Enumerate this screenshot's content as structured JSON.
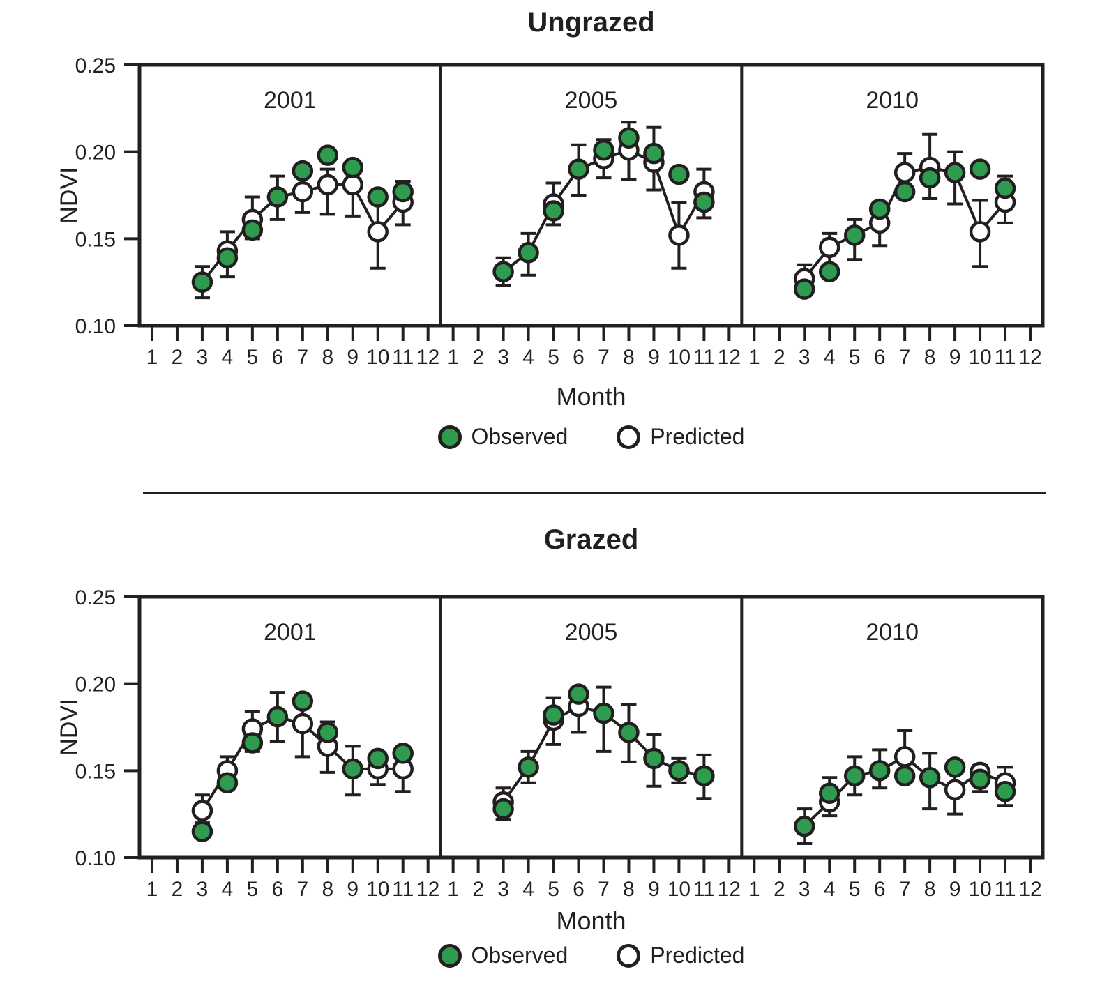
{
  "colors": {
    "observed": "#2e9b4f",
    "predicted": "#ffffff",
    "stroke": "#231f20"
  },
  "chart_data": [
    {
      "type": "line",
      "title": "Ungrazed",
      "xlabel": "Month",
      "ylabel": "NDVI",
      "ylim": [
        0.1,
        0.25
      ],
      "yticks": [
        0.1,
        0.15,
        0.2,
        0.25
      ],
      "months": [
        1,
        2,
        3,
        4,
        5,
        6,
        7,
        8,
        9,
        10,
        11,
        12
      ],
      "grid": false,
      "legend": [
        {
          "name": "Observed",
          "fill": "#2e9b4f"
        },
        {
          "name": "Predicted",
          "fill": "#ffffff"
        }
      ],
      "panels": [
        {
          "year": "2001",
          "points": [
            {
              "m": 3,
              "obs": 0.125,
              "pred": null,
              "line": 0.125,
              "err": [
                0.116,
                0.134
              ]
            },
            {
              "m": 4,
              "obs": 0.139,
              "pred": 0.143,
              "line": 0.143,
              "err": [
                0.128,
                0.154
              ]
            },
            {
              "m": 5,
              "obs": 0.155,
              "pred": 0.161,
              "line": 0.161,
              "err": [
                0.15,
                0.174
              ]
            },
            {
              "m": 6,
              "obs": 0.174,
              "pred": null,
              "line": 0.174,
              "err": [
                0.161,
                0.186
              ]
            },
            {
              "m": 7,
              "obs": 0.189,
              "pred": 0.177,
              "line": 0.177,
              "err": [
                0.165,
                0.186
              ]
            },
            {
              "m": 8,
              "obs": 0.198,
              "pred": 0.181,
              "line": 0.181,
              "err": [
                0.164,
                0.19
              ]
            },
            {
              "m": 9,
              "obs": 0.191,
              "pred": 0.181,
              "line": 0.181,
              "err": [
                0.163,
                0.19
              ]
            },
            {
              "m": 10,
              "obs": 0.174,
              "pred": 0.154,
              "line": 0.154,
              "err": [
                0.133,
                0.174
              ]
            },
            {
              "m": 11,
              "obs": 0.177,
              "pred": 0.171,
              "line": 0.171,
              "err": [
                0.158,
                0.183
              ]
            }
          ]
        },
        {
          "year": "2005",
          "points": [
            {
              "m": 3,
              "obs": 0.131,
              "pred": null,
              "line": 0.131,
              "err": [
                0.123,
                0.139
              ]
            },
            {
              "m": 4,
              "obs": 0.142,
              "pred": null,
              "line": 0.142,
              "err": [
                0.129,
                0.153
              ]
            },
            {
              "m": 5,
              "obs": 0.166,
              "pred": 0.17,
              "line": 0.17,
              "err": [
                0.158,
                0.182
              ]
            },
            {
              "m": 6,
              "obs": 0.19,
              "pred": null,
              "line": 0.19,
              "err": [
                0.175,
                0.204
              ]
            },
            {
              "m": 7,
              "obs": 0.201,
              "pred": 0.196,
              "line": 0.196,
              "err": [
                0.185,
                0.207
              ]
            },
            {
              "m": 8,
              "obs": 0.208,
              "pred": 0.201,
              "line": 0.201,
              "err": [
                0.184,
                0.217
              ]
            },
            {
              "m": 9,
              "obs": 0.199,
              "pred": 0.194,
              "line": 0.194,
              "err": [
                0.178,
                0.214
              ]
            },
            {
              "m": 10,
              "obs": 0.187,
              "pred": 0.152,
              "line": 0.152,
              "err": [
                0.133,
                0.171
              ]
            },
            {
              "m": 11,
              "obs": 0.171,
              "pred": 0.177,
              "line": 0.177,
              "err": [
                0.162,
                0.19
              ]
            }
          ]
        },
        {
          "year": "2010",
          "points": [
            {
              "m": 3,
              "obs": 0.121,
              "pred": 0.127,
              "line": 0.127,
              "err": [
                0.12,
                0.135
              ]
            },
            {
              "m": 4,
              "obs": 0.131,
              "pred": 0.145,
              "line": 0.145,
              "err": [
                0.135,
                0.153
              ]
            },
            {
              "m": 5,
              "obs": 0.152,
              "pred": null,
              "line": 0.152,
              "err": [
                0.138,
                0.161
              ]
            },
            {
              "m": 6,
              "obs": 0.167,
              "pred": 0.159,
              "line": 0.159,
              "err": [
                0.146,
                0.168
              ]
            },
            {
              "m": 7,
              "obs": 0.177,
              "pred": 0.188,
              "line": 0.188,
              "err": [
                0.177,
                0.199
              ]
            },
            {
              "m": 8,
              "obs": 0.185,
              "pred": 0.191,
              "line": 0.191,
              "err": [
                0.173,
                0.21
              ]
            },
            {
              "m": 9,
              "obs": 0.188,
              "pred": null,
              "line": 0.188,
              "err": [
                0.17,
                0.2
              ]
            },
            {
              "m": 10,
              "obs": 0.19,
              "pred": 0.154,
              "line": 0.154,
              "err": [
                0.134,
                0.172
              ]
            },
            {
              "m": 11,
              "obs": 0.179,
              "pred": 0.171,
              "line": 0.171,
              "err": [
                0.159,
                0.186
              ]
            }
          ]
        }
      ]
    },
    {
      "type": "line",
      "title": "Grazed",
      "xlabel": "Month",
      "ylabel": "NDVI",
      "ylim": [
        0.1,
        0.25
      ],
      "yticks": [
        0.1,
        0.15,
        0.2,
        0.25
      ],
      "months": [
        1,
        2,
        3,
        4,
        5,
        6,
        7,
        8,
        9,
        10,
        11,
        12
      ],
      "grid": false,
      "legend": [
        {
          "name": "Observed",
          "fill": "#2e9b4f"
        },
        {
          "name": "Predicted",
          "fill": "#ffffff"
        }
      ],
      "panels": [
        {
          "year": "2001",
          "points": [
            {
              "m": 3,
              "obs": 0.115,
              "pred": 0.127,
              "line": 0.127,
              "err": [
                0.12,
                0.136
              ]
            },
            {
              "m": 4,
              "obs": 0.143,
              "pred": 0.15,
              "line": 0.15,
              "err": [
                0.142,
                0.158
              ]
            },
            {
              "m": 5,
              "obs": 0.166,
              "pred": 0.174,
              "line": 0.174,
              "err": [
                0.161,
                0.184
              ]
            },
            {
              "m": 6,
              "obs": 0.181,
              "pred": null,
              "line": 0.181,
              "err": [
                0.167,
                0.195
              ]
            },
            {
              "m": 7,
              "obs": 0.19,
              "pred": 0.177,
              "line": 0.177,
              "err": [
                0.158,
                0.19
              ]
            },
            {
              "m": 8,
              "obs": 0.172,
              "pred": 0.164,
              "line": 0.164,
              "err": [
                0.149,
                0.178
              ]
            },
            {
              "m": 9,
              "obs": 0.151,
              "pred": null,
              "line": 0.151,
              "err": [
                0.136,
                0.164
              ]
            },
            {
              "m": 10,
              "obs": 0.157,
              "pred": 0.151,
              "line": 0.151,
              "err": [
                0.142,
                0.16
              ]
            },
            {
              "m": 11,
              "obs": 0.16,
              "pred": 0.151,
              "line": 0.151,
              "err": [
                0.138,
                0.159
              ]
            }
          ]
        },
        {
          "year": "2005",
          "points": [
            {
              "m": 3,
              "obs": 0.128,
              "pred": 0.132,
              "line": 0.132,
              "err": [
                0.122,
                0.14
              ]
            },
            {
              "m": 4,
              "obs": 0.152,
              "pred": null,
              "line": 0.152,
              "err": [
                0.143,
                0.161
              ]
            },
            {
              "m": 5,
              "obs": 0.182,
              "pred": 0.179,
              "line": 0.179,
              "err": [
                0.165,
                0.192
              ]
            },
            {
              "m": 6,
              "obs": 0.194,
              "pred": 0.187,
              "line": 0.187,
              "err": [
                0.172,
                0.197
              ]
            },
            {
              "m": 7,
              "obs": 0.183,
              "pred": null,
              "line": 0.183,
              "err": [
                0.161,
                0.198
              ]
            },
            {
              "m": 8,
              "obs": 0.172,
              "pred": null,
              "line": 0.172,
              "err": [
                0.155,
                0.188
              ]
            },
            {
              "m": 9,
              "obs": 0.157,
              "pred": null,
              "line": 0.157,
              "err": [
                0.141,
                0.171
              ]
            },
            {
              "m": 10,
              "obs": 0.15,
              "pred": null,
              "line": 0.15,
              "err": [
                0.143,
                0.157
              ]
            },
            {
              "m": 11,
              "obs": 0.147,
              "pred": null,
              "line": 0.147,
              "err": [
                0.134,
                0.159
              ]
            }
          ]
        },
        {
          "year": "2010",
          "points": [
            {
              "m": 3,
              "obs": 0.118,
              "pred": null,
              "line": 0.118,
              "err": [
                0.108,
                0.128
              ]
            },
            {
              "m": 4,
              "obs": 0.137,
              "pred": 0.132,
              "line": 0.132,
              "err": [
                0.124,
                0.146
              ]
            },
            {
              "m": 5,
              "obs": 0.147,
              "pred": null,
              "line": 0.147,
              "err": [
                0.136,
                0.158
              ]
            },
            {
              "m": 6,
              "obs": 0.15,
              "pred": null,
              "line": 0.15,
              "err": [
                0.14,
                0.162
              ]
            },
            {
              "m": 7,
              "obs": 0.147,
              "pred": 0.158,
              "line": 0.158,
              "err": [
                0.148,
                0.173
              ]
            },
            {
              "m": 8,
              "obs": 0.146,
              "pred": null,
              "line": 0.146,
              "err": [
                0.128,
                0.16
              ]
            },
            {
              "m": 9,
              "obs": 0.152,
              "pred": 0.139,
              "line": 0.139,
              "err": [
                0.125,
                0.15
              ]
            },
            {
              "m": 10,
              "obs": 0.145,
              "pred": 0.149,
              "line": 0.149,
              "err": [
                0.138,
                0.153
              ]
            },
            {
              "m": 11,
              "obs": 0.138,
              "pred": 0.143,
              "line": 0.143,
              "err": [
                0.13,
                0.152
              ]
            }
          ]
        }
      ]
    }
  ]
}
